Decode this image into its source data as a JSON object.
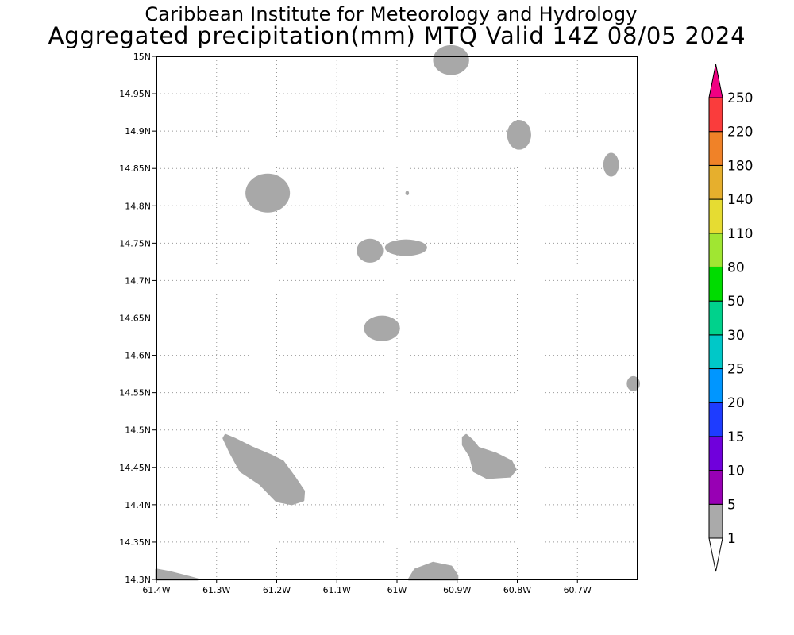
{
  "title": {
    "line1": "Caribbean Institute for Meteorology and Hydrology",
    "line2": "Aggregated precipitation(mm) MTQ Valid 14Z 08/05 2024"
  },
  "map": {
    "lon_range": [
      -61.4,
      -60.6
    ],
    "lat_range": [
      14.3,
      15.0
    ],
    "grid": true,
    "x_ticks": [
      {
        "value": -61.4,
        "label": "61.4W"
      },
      {
        "value": -61.3,
        "label": "61.3W"
      },
      {
        "value": -61.2,
        "label": "61.2W"
      },
      {
        "value": -61.1,
        "label": "61.1W"
      },
      {
        "value": -61.0,
        "label": "61W"
      },
      {
        "value": -60.9,
        "label": "60.9W"
      },
      {
        "value": -60.8,
        "label": "60.8W"
      },
      {
        "value": -60.7,
        "label": "60.7W"
      }
    ],
    "y_ticks": [
      {
        "value": 14.3,
        "label": "14.3N"
      },
      {
        "value": 14.35,
        "label": "14.35N"
      },
      {
        "value": 14.4,
        "label": "14.4N"
      },
      {
        "value": 14.45,
        "label": "14.45N"
      },
      {
        "value": 14.5,
        "label": "14.5N"
      },
      {
        "value": 14.55,
        "label": "14.55N"
      },
      {
        "value": 14.6,
        "label": "14.6N"
      },
      {
        "value": 14.65,
        "label": "14.65N"
      },
      {
        "value": 14.7,
        "label": "14.7N"
      },
      {
        "value": 14.75,
        "label": "14.75N"
      },
      {
        "value": 14.8,
        "label": "14.8N"
      },
      {
        "value": 14.85,
        "label": "14.85N"
      },
      {
        "value": 14.9,
        "label": "14.9N"
      },
      {
        "value": 14.95,
        "label": "14.95N"
      },
      {
        "value": 15.0,
        "label": "15N"
      }
    ],
    "precip_color": "#a8a8a8",
    "precip_areas": [
      {
        "type": "ellipse",
        "lon": -60.91,
        "lat": 14.995,
        "rlon": 0.03,
        "rlat": 0.02
      },
      {
        "type": "ellipse",
        "lon": -60.797,
        "lat": 14.895,
        "rlon": 0.02,
        "rlat": 0.02
      },
      {
        "type": "ellipse",
        "lon": -60.644,
        "lat": 14.855,
        "rlon": 0.013,
        "rlat": 0.016
      },
      {
        "type": "ellipse",
        "lon": -61.215,
        "lat": 14.817,
        "rlon": 0.037,
        "rlat": 0.026
      },
      {
        "type": "ellipse",
        "lon": -60.983,
        "lat": 14.817,
        "rlon": 0.003,
        "rlat": 0.003
      },
      {
        "type": "ellipse",
        "lon": -61.045,
        "lat": 14.74,
        "rlon": 0.022,
        "rlat": 0.016
      },
      {
        "type": "ellipse",
        "lon": -60.985,
        "lat": 14.744,
        "rlon": 0.035,
        "rlat": 0.011
      },
      {
        "type": "ellipse",
        "lon": -61.025,
        "lat": 14.636,
        "rlon": 0.03,
        "rlat": 0.017
      },
      {
        "type": "ellipse",
        "lon": -60.607,
        "lat": 14.562,
        "rlon": 0.011,
        "rlat": 0.01
      },
      {
        "type": "path",
        "points": [
          [
            -61.285,
            14.493
          ],
          [
            -61.27,
            14.488
          ],
          [
            -61.24,
            14.476
          ],
          [
            -61.21,
            14.466
          ],
          [
            -61.19,
            14.458
          ],
          [
            -61.17,
            14.436
          ],
          [
            -61.155,
            14.418
          ],
          [
            -61.156,
            14.406
          ],
          [
            -61.175,
            14.401
          ],
          [
            -61.2,
            14.405
          ],
          [
            -61.228,
            14.428
          ],
          [
            -61.26,
            14.445
          ],
          [
            -61.277,
            14.47
          ],
          [
            -61.288,
            14.489
          ]
        ]
      },
      {
        "type": "path",
        "points": [
          [
            -60.885,
            14.493
          ],
          [
            -60.875,
            14.486
          ],
          [
            -60.865,
            14.476
          ],
          [
            -60.835,
            14.468
          ],
          [
            -60.81,
            14.458
          ],
          [
            -60.803,
            14.447
          ],
          [
            -60.812,
            14.438
          ],
          [
            -60.85,
            14.436
          ],
          [
            -60.872,
            14.445
          ],
          [
            -60.878,
            14.465
          ],
          [
            -60.89,
            14.48
          ],
          [
            -60.89,
            14.49
          ]
        ]
      },
      {
        "type": "path",
        "points": [
          [
            -61.4,
            14.313
          ],
          [
            -61.38,
            14.31
          ],
          [
            -61.355,
            14.305
          ],
          [
            -61.332,
            14.3
          ],
          [
            -61.4,
            14.3
          ]
        ]
      },
      {
        "type": "path",
        "points": [
          [
            -60.98,
            14.3
          ],
          [
            -60.97,
            14.313
          ],
          [
            -60.94,
            14.322
          ],
          [
            -60.91,
            14.317
          ],
          [
            -60.9,
            14.305
          ],
          [
            -60.9,
            14.3
          ]
        ]
      }
    ]
  },
  "colorbar": {
    "colors": [
      "#aaaaaa",
      "#9800b4",
      "#7000dc",
      "#1e3cff",
      "#0096ff",
      "#00c8c8",
      "#00d28c",
      "#00dc00",
      "#a0e632",
      "#e6dc32",
      "#e6af2d",
      "#f08228",
      "#fa3c3c",
      "#f00082"
    ],
    "labels": [
      "1",
      "5",
      "10",
      "15",
      "20",
      "25",
      "30",
      "50",
      "80",
      "110",
      "140",
      "180",
      "220",
      "250"
    ]
  }
}
